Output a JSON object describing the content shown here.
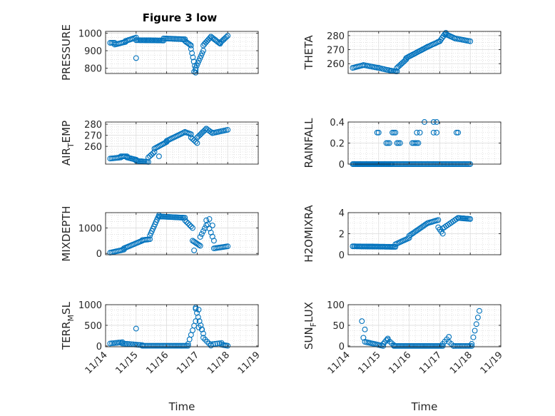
{
  "figure_title": "Figure 3 low",
  "marker_color": "#0072BD",
  "chart_data": [
    {
      "type": "scatter",
      "ylabel_html": "PRESSURE",
      "ylabel": "PRESSURE",
      "xlabel": "",
      "xticks": [
        "11/14",
        "11/15",
        "11/16",
        "11/17",
        "11/18",
        "11/19"
      ],
      "xlim": [
        0,
        5
      ],
      "ylim": [
        770,
        1010
      ],
      "yticks": [
        800,
        900,
        1000
      ],
      "grid": "on",
      "series": [
        {
          "segments": [
            {
              "x0": 0.15,
              "x1": 0.3,
              "v0": 945,
              "v1": 945,
              "n": 4
            },
            {
              "x0": 0.3,
              "x1": 0.65,
              "v0": 935,
              "v1": 950,
              "n": 8
            },
            {
              "x0": 0.65,
              "x1": 1.0,
              "v0": 955,
              "v1": 975,
              "n": 8
            },
            {
              "x0": 1.0,
              "x1": 1.9,
              "v0": 960,
              "v1": 958,
              "n": 22
            },
            {
              "x0": 1.9,
              "x1": 2.6,
              "v0": 970,
              "v1": 965,
              "n": 16
            },
            {
              "x0": 2.6,
              "x1": 2.8,
              "v0": 955,
              "v1": 930,
              "n": 6
            },
            {
              "x0": 2.8,
              "x1": 2.95,
              "v0": 910,
              "v1": 790,
              "n": 6
            },
            {
              "x0": 2.95,
              "x1": 3.2,
              "v0": 800,
              "v1": 900,
              "n": 8
            },
            {
              "x0": 3.2,
              "x1": 3.45,
              "v0": 930,
              "v1": 980,
              "n": 7
            },
            {
              "x0": 3.45,
              "x1": 3.75,
              "v0": 980,
              "v1": 940,
              "n": 8
            },
            {
              "x0": 3.75,
              "x1": 4.0,
              "v0": 945,
              "v1": 985,
              "n": 7
            }
          ],
          "extra": [
            [
              1.0,
              858
            ],
            [
              2.95,
              775
            ],
            [
              2.9,
              780
            ]
          ]
        }
      ]
    },
    {
      "type": "scatter",
      "ylabel": "THETA",
      "xlabel": "",
      "xticks": [
        "11/14",
        "11/15",
        "11/16",
        "11/17",
        "11/18",
        "11/19"
      ],
      "xlim": [
        0,
        5
      ],
      "ylim": [
        253,
        283
      ],
      "yticks": [
        260,
        270,
        280
      ],
      "grid": "on",
      "series": [
        {
          "segments": [
            {
              "x0": 0.15,
              "x1": 0.5,
              "v0": 257,
              "v1": 259,
              "n": 8
            },
            {
              "x0": 0.5,
              "x1": 1.0,
              "v0": 259,
              "v1": 257,
              "n": 10
            },
            {
              "x0": 1.0,
              "x1": 1.4,
              "v0": 257,
              "v1": 255,
              "n": 8
            },
            {
              "x0": 1.4,
              "x1": 1.6,
              "v0": 255,
              "v1": 254.5,
              "n": 6
            },
            {
              "x0": 1.6,
              "x1": 1.9,
              "v0": 257,
              "v1": 263,
              "n": 8
            },
            {
              "x0": 1.9,
              "x1": 2.6,
              "v0": 264,
              "v1": 272,
              "n": 18
            },
            {
              "x0": 2.6,
              "x1": 3.0,
              "v0": 272,
              "v1": 276,
              "n": 10
            },
            {
              "x0": 3.0,
              "x1": 3.2,
              "v0": 276,
              "v1": 282,
              "n": 6
            },
            {
              "x0": 3.2,
              "x1": 3.5,
              "v0": 281,
              "v1": 278,
              "n": 8
            },
            {
              "x0": 3.5,
              "x1": 4.0,
              "v0": 278,
              "v1": 276,
              "n": 10
            }
          ],
          "extra": []
        }
      ]
    },
    {
      "type": "scatter",
      "ylabel": "AIR_TEMP",
      "ylabel_main": "AIR",
      "ylabel_sub": "T",
      "ylabel_rest": "EMP",
      "xlabel": "",
      "xticks": [
        "11/14",
        "11/15",
        "11/16",
        "11/17",
        "11/18",
        "11/19"
      ],
      "xlim": [
        0,
        5
      ],
      "ylim": [
        244,
        282
      ],
      "yticks": [
        260,
        270,
        280
      ],
      "grid": "on",
      "series": [
        {
          "segments": [
            {
              "x0": 0.15,
              "x1": 0.5,
              "v0": 249,
              "v1": 250,
              "n": 8
            },
            {
              "x0": 0.5,
              "x1": 0.7,
              "v0": 251,
              "v1": 251,
              "n": 5
            },
            {
              "x0": 0.7,
              "x1": 1.0,
              "v0": 250,
              "v1": 248,
              "n": 8
            },
            {
              "x0": 1.0,
              "x1": 1.4,
              "v0": 247,
              "v1": 246,
              "n": 10
            },
            {
              "x0": 1.4,
              "x1": 1.6,
              "v0": 250,
              "v1": 255,
              "n": 5
            },
            {
              "x0": 1.6,
              "x1": 2.0,
              "v0": 258,
              "v1": 264,
              "n": 10
            },
            {
              "x0": 2.0,
              "x1": 2.6,
              "v0": 265,
              "v1": 273,
              "n": 14
            },
            {
              "x0": 2.6,
              "x1": 2.8,
              "v0": 273,
              "v1": 271,
              "n": 5
            },
            {
              "x0": 2.8,
              "x1": 3.0,
              "v0": 268,
              "v1": 263,
              "n": 5
            },
            {
              "x0": 3.0,
              "x1": 3.3,
              "v0": 268,
              "v1": 276,
              "n": 8
            },
            {
              "x0": 3.3,
              "x1": 3.5,
              "v0": 276,
              "v1": 272,
              "n": 5
            },
            {
              "x0": 3.5,
              "x1": 4.0,
              "v0": 272,
              "v1": 275,
              "n": 10
            }
          ],
          "extra": [
            [
              1.75,
              251
            ]
          ]
        }
      ]
    },
    {
      "type": "scatter",
      "ylabel": "RAINFALL",
      "xlabel": "",
      "xticks": [
        "11/14",
        "11/15",
        "11/16",
        "11/17",
        "11/18",
        "11/19"
      ],
      "xlim": [
        0,
        5
      ],
      "ylim": [
        0,
        0.4
      ],
      "yticks": [
        0,
        0.2,
        0.4
      ],
      "grid": "on",
      "series": [
        {
          "segments": [
            {
              "x0": 0.15,
              "x1": 1.45,
              "v0": 0,
              "v1": 0,
              "n": 40
            },
            {
              "x0": 1.5,
              "x1": 4.0,
              "v0": 0,
              "v1": 0,
              "n": 55
            }
          ],
          "extra": [
            [
              0.95,
              0.3
            ],
            [
              1.0,
              0.3
            ],
            [
              1.25,
              0.2
            ],
            [
              1.3,
              0.2
            ],
            [
              1.35,
              0.2
            ],
            [
              1.45,
              0.3
            ],
            [
              1.5,
              0.3
            ],
            [
              1.55,
              0.3
            ],
            [
              1.6,
              0.2
            ],
            [
              1.65,
              0.2
            ],
            [
              1.7,
              0.2
            ],
            [
              2.1,
              0.2
            ],
            [
              2.15,
              0.2
            ],
            [
              2.2,
              0.2
            ],
            [
              2.25,
              0.2
            ],
            [
              2.3,
              0.2
            ],
            [
              2.25,
              0.3
            ],
            [
              2.35,
              0.3
            ],
            [
              2.5,
              0.4
            ],
            [
              2.8,
              0.4
            ],
            [
              2.9,
              0.4
            ],
            [
              2.8,
              0.3
            ],
            [
              2.9,
              0.3
            ],
            [
              3.55,
              0.3
            ],
            [
              3.6,
              0.3
            ]
          ]
        }
      ]
    },
    {
      "type": "scatter",
      "ylabel": "MIXDEPTH",
      "xlabel": "",
      "xticks": [
        "11/14",
        "11/15",
        "11/16",
        "11/17",
        "11/18",
        "11/19"
      ],
      "xlim": [
        0,
        5
      ],
      "ylim": [
        -50,
        1600
      ],
      "yticks": [
        0,
        1000
      ],
      "grid": "on",
      "series": [
        {
          "segments": [
            {
              "x0": 0.15,
              "x1": 0.6,
              "v0": 30,
              "v1": 150,
              "n": 10
            },
            {
              "x0": 0.6,
              "x1": 1.2,
              "v0": 200,
              "v1": 500,
              "n": 14
            },
            {
              "x0": 1.2,
              "x1": 1.45,
              "v0": 520,
              "v1": 560,
              "n": 6
            },
            {
              "x0": 1.45,
              "x1": 1.75,
              "v0": 700,
              "v1": 1500,
              "n": 10
            },
            {
              "x0": 1.75,
              "x1": 2.6,
              "v0": 1450,
              "v1": 1400,
              "n": 20
            },
            {
              "x0": 2.6,
              "x1": 2.85,
              "v0": 1300,
              "v1": 1000,
              "n": 6
            },
            {
              "x0": 2.85,
              "x1": 3.1,
              "v0": 500,
              "v1": 300,
              "n": 7
            },
            {
              "x0": 3.1,
              "x1": 3.3,
              "v0": 650,
              "v1": 1100,
              "n": 5
            },
            {
              "x0": 3.3,
              "x1": 3.55,
              "v0": 1300,
              "v1": 500,
              "n": 6
            },
            {
              "x0": 3.55,
              "x1": 4.0,
              "v0": 200,
              "v1": 280,
              "n": 10
            }
          ],
          "extra": [
            [
              2.9,
              120
            ],
            [
              3.4,
              1350
            ],
            [
              3.5,
              1100
            ]
          ]
        }
      ]
    },
    {
      "type": "scatter",
      "ylabel": "H2OMIXRA",
      "xlabel": "",
      "xticks": [
        "11/14",
        "11/15",
        "11/16",
        "11/17",
        "11/18",
        "11/19"
      ],
      "xlim": [
        0,
        5
      ],
      "ylim": [
        0,
        4
      ],
      "yticks": [
        0,
        2,
        4
      ],
      "grid": "on",
      "series": [
        {
          "segments": [
            {
              "x0": 0.15,
              "x1": 1.55,
              "v0": 0.8,
              "v1": 0.75,
              "n": 35
            },
            {
              "x0": 1.55,
              "x1": 2.0,
              "v0": 1.0,
              "v1": 1.6,
              "n": 10
            },
            {
              "x0": 2.0,
              "x1": 2.6,
              "v0": 1.8,
              "v1": 3.0,
              "n": 14
            },
            {
              "x0": 2.6,
              "x1": 2.95,
              "v0": 3.0,
              "v1": 3.3,
              "n": 8
            },
            {
              "x0": 2.95,
              "x1": 3.1,
              "v0": 2.6,
              "v1": 2.0,
              "n": 4
            },
            {
              "x0": 3.1,
              "x1": 3.6,
              "v0": 2.5,
              "v1": 3.5,
              "n": 10
            },
            {
              "x0": 3.6,
              "x1": 4.0,
              "v0": 3.5,
              "v1": 3.4,
              "n": 10
            }
          ],
          "extra": []
        }
      ]
    },
    {
      "type": "scatter",
      "ylabel": "TERR_MSL",
      "ylabel_main": "TERR",
      "ylabel_sub": "M",
      "ylabel_rest": "SL",
      "xlabel": "Time",
      "xticks": [
        "11/14",
        "11/15",
        "11/16",
        "11/17",
        "11/18",
        "11/19"
      ],
      "xlim": [
        0,
        5
      ],
      "ylim": [
        -20,
        1000
      ],
      "yticks": [
        0,
        500,
        1000
      ],
      "grid": "on",
      "series": [
        {
          "segments": [
            {
              "x0": 0.15,
              "x1": 0.55,
              "v0": 60,
              "v1": 90,
              "n": 8
            },
            {
              "x0": 0.55,
              "x1": 1.2,
              "v0": 60,
              "v1": 20,
              "n": 12
            },
            {
              "x0": 1.2,
              "x1": 2.7,
              "v0": 5,
              "v1": 5,
              "n": 32
            },
            {
              "x0": 2.7,
              "x1": 2.95,
              "v0": 50,
              "v1": 600,
              "n": 6
            },
            {
              "x0": 2.95,
              "x1": 3.2,
              "v0": 900,
              "v1": 300,
              "n": 7
            },
            {
              "x0": 3.2,
              "x1": 3.45,
              "v0": 200,
              "v1": 10,
              "n": 5
            },
            {
              "x0": 3.45,
              "x1": 3.8,
              "v0": 40,
              "v1": 70,
              "n": 6
            },
            {
              "x0": 3.8,
              "x1": 4.0,
              "v0": 30,
              "v1": 5,
              "n": 5
            }
          ],
          "extra": [
            [
              1.0,
              420
            ],
            [
              2.95,
              930
            ],
            [
              3.05,
              880
            ],
            [
              3.05,
              450
            ],
            [
              3.15,
              400
            ]
          ]
        }
      ]
    },
    {
      "type": "scatter",
      "ylabel": "SUN_FLUX",
      "ylabel_main": "SUN",
      "ylabel_sub": "F",
      "ylabel_rest": "LUX",
      "xlabel": "Time",
      "xticks": [
        "11/14",
        "11/15",
        "11/16",
        "11/17",
        "11/18",
        "11/19"
      ],
      "xlim": [
        0,
        5
      ],
      "ylim": [
        -2,
        100
      ],
      "yticks": [
        0,
        50,
        100
      ],
      "grid": "on",
      "series": [
        {
          "segments": [
            {
              "x0": 0.45,
              "x1": 0.55,
              "v0": 60,
              "v1": 40,
              "n": 2
            },
            {
              "x0": 0.55,
              "x1": 1.15,
              "v0": 10,
              "v1": 0,
              "n": 12
            },
            {
              "x0": 1.15,
              "x1": 1.3,
              "v0": 5,
              "v1": 18,
              "n": 4
            },
            {
              "x0": 1.3,
              "x1": 1.5,
              "v0": 15,
              "v1": 2,
              "n": 4
            },
            {
              "x0": 1.5,
              "x1": 3.1,
              "v0": 0,
              "v1": 0,
              "n": 35
            },
            {
              "x0": 3.1,
              "x1": 3.3,
              "v0": 5,
              "v1": 22,
              "n": 4
            },
            {
              "x0": 3.3,
              "x1": 3.45,
              "v0": 10,
              "v1": 0,
              "n": 3
            },
            {
              "x0": 3.45,
              "x1": 4.05,
              "v0": 0,
              "v1": 0,
              "n": 12
            },
            {
              "x0": 4.05,
              "x1": 4.3,
              "v0": 5,
              "v1": 85,
              "n": 6
            }
          ],
          "extra": [
            [
              0.5,
              20
            ]
          ]
        }
      ]
    }
  ]
}
